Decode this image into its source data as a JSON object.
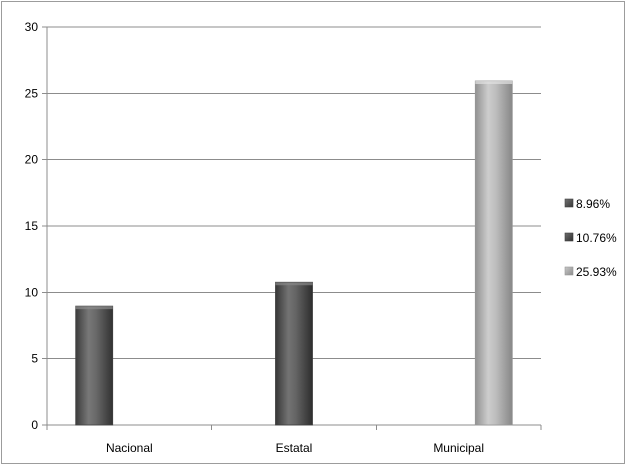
{
  "chart_data": {
    "type": "bar",
    "categories": [
      "Nacional",
      "Estatal",
      "Municipal"
    ],
    "series": [
      {
        "name": "8.96%",
        "values": [
          8.96,
          null,
          null
        ],
        "color": "#5f5f5f"
      },
      {
        "name": "10.76%",
        "values": [
          null,
          10.76,
          null
        ],
        "color": "#5a5a5a"
      },
      {
        "name": "25.93%",
        "values": [
          null,
          null,
          25.93
        ],
        "color": "#b4b4b4"
      }
    ],
    "ylim": [
      0,
      30
    ],
    "yticks": [
      0,
      5,
      10,
      15,
      20,
      25,
      30
    ],
    "grid": true,
    "legend": "right",
    "title": "",
    "xlabel": "",
    "ylabel": ""
  }
}
